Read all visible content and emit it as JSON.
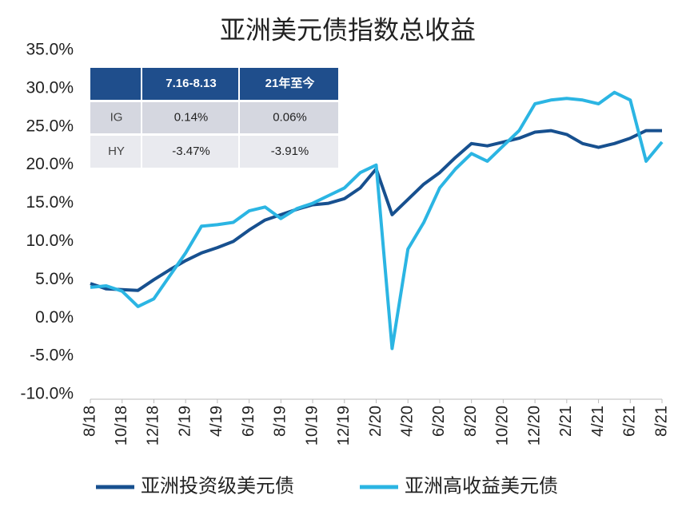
{
  "chart_data": {
    "type": "line",
    "title": "亚洲美元债指数总收益",
    "categories": [
      "8/18",
      null,
      "10/18",
      null,
      "12/18",
      null,
      "2/19",
      null,
      "4/19",
      null,
      "6/19",
      null,
      "8/19",
      null,
      "10/19",
      null,
      "12/19",
      null,
      "2/20",
      null,
      "4/20",
      null,
      "6/20",
      null,
      "8/20",
      null,
      "10/20",
      null,
      "12/20",
      null,
      "2/21",
      null,
      "4/21",
      null,
      "6/21",
      null,
      "8/21"
    ],
    "series": [
      {
        "name": "亚洲投资级美元债",
        "color": "#17508f",
        "values": [
          4.5,
          3.8,
          3.7,
          3.6,
          5.0,
          6.3,
          7.5,
          8.5,
          9.2,
          10.0,
          11.5,
          12.8,
          13.5,
          14.2,
          14.8,
          15.0,
          15.6,
          17.0,
          19.5,
          13.5,
          15.5,
          17.5,
          19.0,
          21.0,
          22.8,
          22.5,
          23.0,
          23.5,
          24.3,
          24.5,
          24.0,
          22.8,
          22.3,
          22.8,
          23.5,
          24.5,
          24.5
        ]
      },
      {
        "name": "亚洲高收益美元债",
        "color": "#2bb5e3",
        "values": [
          4.0,
          4.2,
          3.5,
          1.5,
          2.5,
          5.5,
          8.5,
          12.0,
          12.2,
          12.5,
          14.0,
          14.5,
          13.0,
          14.3,
          15.0,
          16.0,
          17.0,
          19.0,
          20.0,
          -4.0,
          9.0,
          12.5,
          17.0,
          19.5,
          21.5,
          20.5,
          22.5,
          24.5,
          28.0,
          28.5,
          28.7,
          28.5,
          28.0,
          29.5,
          28.5,
          20.5,
          23.0
        ]
      }
    ],
    "ylim": [
      -10,
      35
    ],
    "yticks": [
      {
        "value": -10,
        "label": "-10.0%"
      },
      {
        "value": -5,
        "label": "-5.0%"
      },
      {
        "value": 0,
        "label": "0.0%"
      },
      {
        "value": 5,
        "label": "5.0%"
      },
      {
        "value": 10,
        "label": "10.0%"
      },
      {
        "value": 15,
        "label": "15.0%"
      },
      {
        "value": 20,
        "label": "20.0%"
      },
      {
        "value": 25,
        "label": "25.0%"
      },
      {
        "value": 30,
        "label": "30.0%"
      },
      {
        "value": 35,
        "label": "35.0%"
      }
    ],
    "legend": "bottom",
    "table": {
      "columns": [
        "7.16-8.13",
        "21年至今"
      ],
      "rows": [
        {
          "label": "IG",
          "values": [
            "0.14%",
            "0.06%"
          ]
        },
        {
          "label": "HY",
          "values": [
            "-3.47%",
            "-3.91%"
          ]
        }
      ]
    }
  }
}
